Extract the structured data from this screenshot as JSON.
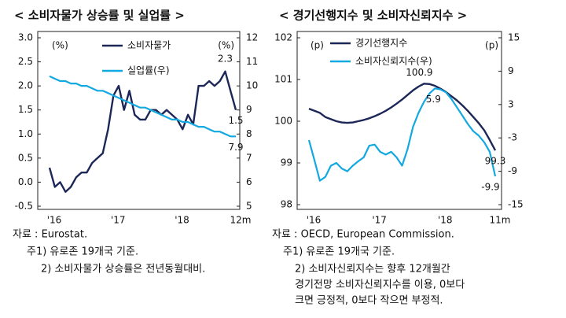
{
  "chart_data": [
    {
      "type": "line",
      "title": "< 소비자물가 상승률 및 실업률 >",
      "y_unit": "(%)",
      "y2_unit": "(%)",
      "categories": [
        "'16",
        null,
        null,
        null,
        null,
        null,
        null,
        null,
        null,
        null,
        null,
        null,
        "'17",
        null,
        null,
        null,
        null,
        null,
        null,
        null,
        null,
        null,
        null,
        null,
        "'18",
        null,
        null,
        null,
        null,
        null,
        null,
        null,
        null,
        null,
        null,
        "12m"
      ],
      "series": [
        {
          "name": "소비자물가",
          "color": "#1c2757",
          "axis": "y",
          "values": [
            0.3,
            -0.1,
            0.0,
            -0.2,
            -0.1,
            0.1,
            0.2,
            0.2,
            0.4,
            0.5,
            0.6,
            1.1,
            1.8,
            2.0,
            1.5,
            1.9,
            1.4,
            1.3,
            1.3,
            1.5,
            1.5,
            1.4,
            1.5,
            1.4,
            1.3,
            1.1,
            1.4,
            1.2,
            2.0,
            2.0,
            2.1,
            2.0,
            2.1,
            2.3,
            1.9,
            1.5
          ]
        },
        {
          "name": "실업률(우)",
          "color": "#12a8e0",
          "axis": "y2",
          "values": [
            10.4,
            10.3,
            10.2,
            10.2,
            10.1,
            10.1,
            10.0,
            10.0,
            9.9,
            9.8,
            9.8,
            9.7,
            9.6,
            9.5,
            9.4,
            9.3,
            9.2,
            9.1,
            9.1,
            9.0,
            8.9,
            8.8,
            8.7,
            8.6,
            8.6,
            8.5,
            8.5,
            8.4,
            8.3,
            8.3,
            8.2,
            8.1,
            8.1,
            8.0,
            7.9,
            7.9
          ]
        }
      ],
      "ylim": [
        -0.5,
        3.0
      ],
      "yticks": [
        -0.5,
        {
          "value": 0,
          "label": "0.0"
        },
        0.5,
        {
          "value": 1,
          "label": "1.0"
        },
        1.5,
        {
          "value": 2,
          "label": "2.0"
        },
        2.5,
        {
          "value": 3,
          "label": "3.0"
        }
      ],
      "y2lim": [
        5,
        12
      ],
      "y2ticks": [
        5,
        6,
        7,
        8,
        9,
        10,
        11,
        12
      ],
      "grid": false,
      "annotations": [
        "2.3",
        "1.5",
        "7.9"
      ],
      "notes": [
        "자료 : Eurostat.",
        "주1) 유로존 19개국 기준.",
        "2) 소비자물가 상승률은 전년동월대비."
      ]
    },
    {
      "type": "line",
      "title": "< 경기선행지수 및 소비자신뢰지수 >",
      "y_unit": "(p)",
      "y2_unit": "(p)",
      "categories": [
        "'16",
        null,
        null,
        null,
        null,
        null,
        null,
        null,
        null,
        null,
        null,
        null,
        "'17",
        null,
        null,
        null,
        null,
        null,
        null,
        null,
        null,
        null,
        null,
        null,
        "'18",
        null,
        null,
        null,
        null,
        null,
        null,
        null,
        null,
        null,
        "11m"
      ],
      "series": [
        {
          "name": "경기선행지수",
          "color": "#1c2757",
          "axis": "y",
          "values": [
            100.3,
            100.25,
            100.2,
            100.1,
            100.05,
            100.0,
            99.97,
            99.96,
            99.97,
            100.0,
            100.03,
            100.07,
            100.12,
            100.18,
            100.25,
            100.33,
            100.42,
            100.52,
            100.63,
            100.74,
            100.83,
            100.9,
            100.89,
            100.85,
            100.78,
            100.7,
            100.6,
            100.5,
            100.38,
            100.25,
            100.1,
            99.95,
            99.78,
            99.55,
            99.3
          ]
        },
        {
          "name": "소비자신뢰지수(우)",
          "color": "#12a8e0",
          "axis": "y2",
          "values": [
            -3.4,
            -7,
            -10.7,
            -10,
            -8,
            -7.5,
            -8.5,
            -9,
            -8,
            -7.2,
            -6.5,
            -4.4,
            -4.2,
            -5.5,
            -6,
            -5.5,
            -6.5,
            -8,
            -5,
            -1,
            1.5,
            3.5,
            5,
            5.9,
            5.7,
            5.2,
            4,
            2.5,
            1,
            -0.5,
            -1.8,
            -2.6,
            -3.8,
            -5.5,
            -9.9
          ]
        }
      ],
      "ylim": [
        98,
        102
      ],
      "yticks": [
        98,
        99,
        100,
        101,
        102
      ],
      "y2lim": [
        -15,
        15
      ],
      "y2ticks": [
        -15,
        -9,
        -3,
        3,
        9,
        15
      ],
      "grid": false,
      "annotations": [
        "100.9",
        "5.9",
        "99.3",
        "-9.9"
      ],
      "notes": [
        "자료 : OECD, European Commission.",
        "주1) 유로존 19개국 기준.",
        "2) 소비자신뢰지수는 향후 12개월간",
        "경기전망 소비자신뢰지수를 이용, 0보다",
        "크면 긍정적, 0보다 작으면 부정적."
      ]
    }
  ]
}
